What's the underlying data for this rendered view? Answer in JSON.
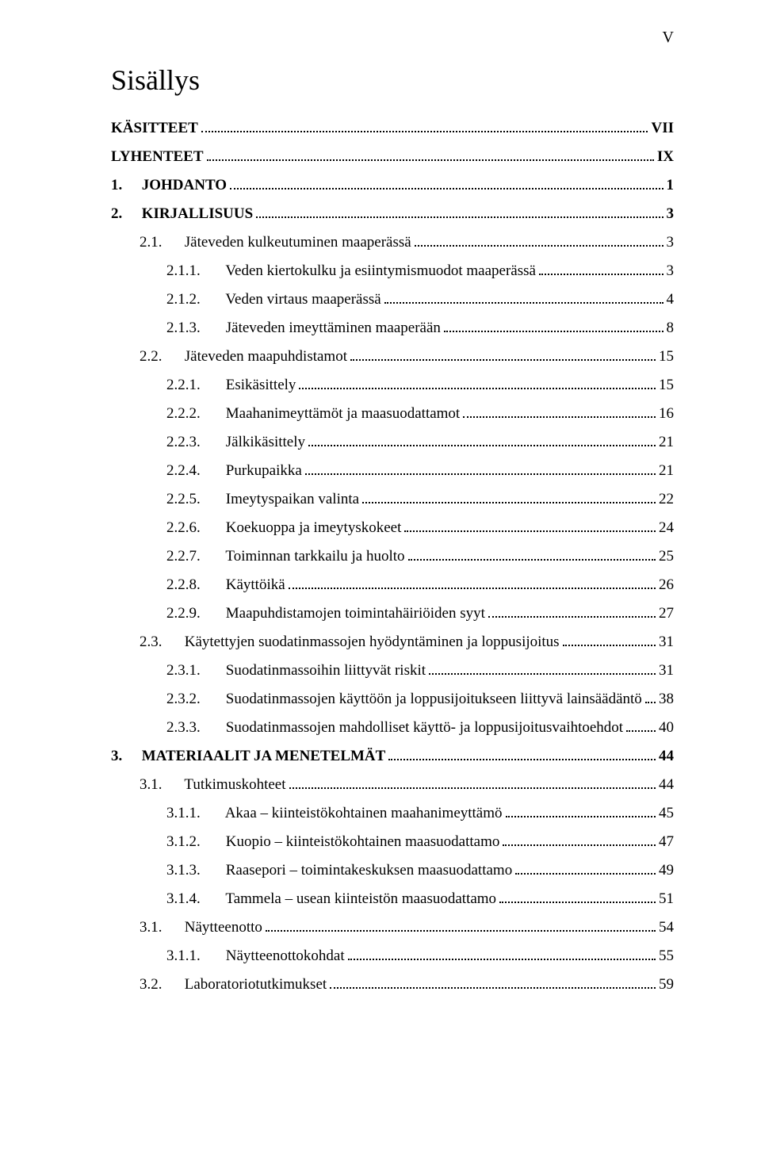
{
  "page_marker": "V",
  "title": "Sisällys",
  "typography": {
    "font_family": "Times New Roman",
    "title_fontsize_pt": 27,
    "body_fontsize_pt": 14,
    "text_color": "#000000",
    "background_color": "#ffffff",
    "leader_color": "#000000",
    "leader_style": "dotted"
  },
  "toc": [
    {
      "num": null,
      "label": "KÄSITTEET",
      "page": "VII",
      "indent": 0,
      "bold": true
    },
    {
      "num": null,
      "label": "LYHENTEET",
      "page": "IX",
      "indent": 0,
      "bold": true
    },
    {
      "num": "1.",
      "label": "JOHDANTO",
      "page": "1",
      "indent": 0,
      "bold": true
    },
    {
      "num": "2.",
      "label": "KIRJALLISUUS",
      "page": "3",
      "indent": 0,
      "bold": true
    },
    {
      "num": "2.1.",
      "label": "Jäteveden kulkeutuminen maaperässä",
      "page": "3",
      "indent": 1,
      "bold": false
    },
    {
      "num": "2.1.1.",
      "label": "Veden kiertokulku ja esiintymismuodot maaperässä",
      "page": "3",
      "indent": 2,
      "bold": false
    },
    {
      "num": "2.1.2.",
      "label": "Veden virtaus maaperässä",
      "page": "4",
      "indent": 2,
      "bold": false
    },
    {
      "num": "2.1.3.",
      "label": "Jäteveden imeyttäminen maaperään",
      "page": "8",
      "indent": 2,
      "bold": false
    },
    {
      "num": "2.2.",
      "label": "Jäteveden maapuhdistamot",
      "page": "15",
      "indent": 1,
      "bold": false
    },
    {
      "num": "2.2.1.",
      "label": "Esikäsittely",
      "page": "15",
      "indent": 2,
      "bold": false
    },
    {
      "num": "2.2.2.",
      "label": "Maahanimeyttämöt ja maasuodattamot",
      "page": "16",
      "indent": 2,
      "bold": false
    },
    {
      "num": "2.2.3.",
      "label": "Jälkikäsittely",
      "page": "21",
      "indent": 2,
      "bold": false
    },
    {
      "num": "2.2.4.",
      "label": "Purkupaikka",
      "page": "21",
      "indent": 2,
      "bold": false
    },
    {
      "num": "2.2.5.",
      "label": "Imeytyspaikan valinta",
      "page": "22",
      "indent": 2,
      "bold": false
    },
    {
      "num": "2.2.6.",
      "label": "Koekuoppa ja imeytyskokeet",
      "page": "24",
      "indent": 2,
      "bold": false
    },
    {
      "num": "2.2.7.",
      "label": "Toiminnan tarkkailu ja huolto",
      "page": "25",
      "indent": 2,
      "bold": false
    },
    {
      "num": "2.2.8.",
      "label": "Käyttöikä",
      "page": "26",
      "indent": 2,
      "bold": false
    },
    {
      "num": "2.2.9.",
      "label": "Maapuhdistamojen toimintahäiriöiden syyt",
      "page": "27",
      "indent": 2,
      "bold": false
    },
    {
      "num": "2.3.",
      "label": "Käytettyjen suodatinmassojen hyödyntäminen ja loppusijoitus",
      "page": "31",
      "indent": 1,
      "bold": false
    },
    {
      "num": "2.3.1.",
      "label": "Suodatinmassoihin liittyvät riskit",
      "page": "31",
      "indent": 2,
      "bold": false
    },
    {
      "num": "2.3.2.",
      "label": "Suodatinmassojen käyttöön ja loppusijoitukseen liittyvä lainsäädäntö",
      "page": "38",
      "indent": 2,
      "bold": false
    },
    {
      "num": "2.3.3.",
      "label": "Suodatinmassojen mahdolliset käyttö- ja loppusijoitusvaihtoehdot",
      "page": "40",
      "indent": 2,
      "bold": false
    },
    {
      "num": "3.",
      "label": "MATERIAALIT JA MENETELMÄT",
      "page": "44",
      "indent": 0,
      "bold": true
    },
    {
      "num": "3.1.",
      "label": "Tutkimuskohteet",
      "page": "44",
      "indent": 1,
      "bold": false
    },
    {
      "num": "3.1.1.",
      "label": "Akaa – kiinteistökohtainen maahanimeyttämö",
      "page": "45",
      "indent": 2,
      "bold": false
    },
    {
      "num": "3.1.2.",
      "label": "Kuopio – kiinteistökohtainen maasuodattamo",
      "page": "47",
      "indent": 2,
      "bold": false
    },
    {
      "num": "3.1.3.",
      "label": "Raasepori – toimintakeskuksen maasuodattamo",
      "page": "49",
      "indent": 2,
      "bold": false
    },
    {
      "num": "3.1.4.",
      "label": "Tammela – usean kiinteistön maasuodattamo",
      "page": "51",
      "indent": 2,
      "bold": false
    },
    {
      "num": "3.1.",
      "label": "Näytteenotto",
      "page": "54",
      "indent": 1,
      "bold": false
    },
    {
      "num": "3.1.1.",
      "label": "Näytteenottokohdat",
      "page": "55",
      "indent": 2,
      "bold": false
    },
    {
      "num": "3.2.",
      "label": "Laboratoriotutkimukset",
      "page": "59",
      "indent": 1,
      "bold": false
    }
  ]
}
